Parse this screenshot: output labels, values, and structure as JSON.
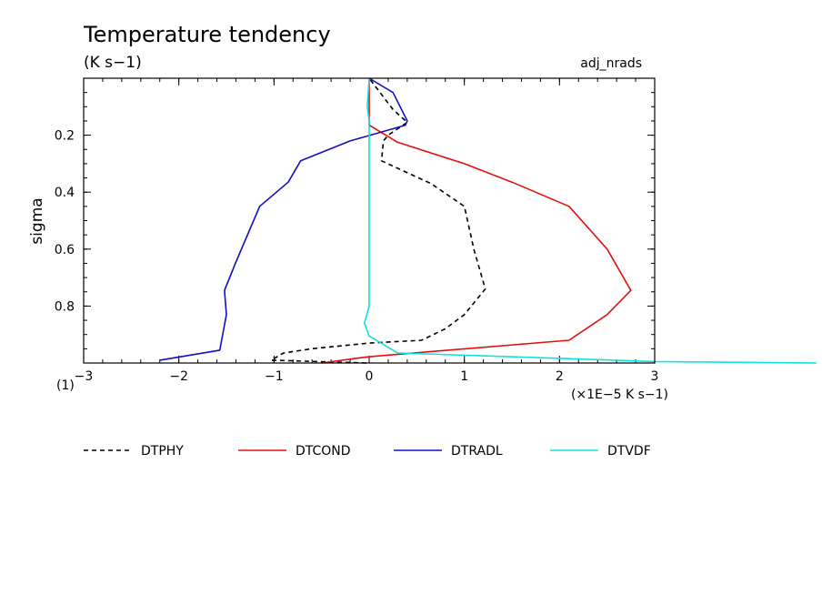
{
  "chart_data": {
    "type": "line",
    "title": "Temperature tendency",
    "subtitle": "(K s−1)",
    "tag": "adj_nrads",
    "xlabel": "(×1E−5 K s−1)",
    "ylabel": "sigma",
    "corner_label": "(1)",
    "xlim": [
      -3,
      3
    ],
    "ylim": [
      1.0,
      0.0
    ],
    "x_ticks": [
      -3,
      -2,
      -1,
      0,
      1,
      2,
      3
    ],
    "x_tick_labels": [
      "−3",
      "−2",
      "−1",
      "0",
      "1",
      "2",
      "3"
    ],
    "y_ticks": [
      0.2,
      0.4,
      0.6,
      0.8
    ],
    "y_tick_labels": [
      "0.2",
      "0.4",
      "0.6",
      "0.8"
    ],
    "grid": false,
    "series": [
      {
        "name": "DTPHY",
        "color": "#000000",
        "dash": "dashed",
        "points": [
          [
            -0.03,
            1.0
          ],
          [
            -1.03,
            0.99
          ],
          [
            -0.9,
            0.965
          ],
          [
            -0.6,
            0.95
          ],
          [
            0.0,
            0.93
          ],
          [
            0.55,
            0.92
          ],
          [
            0.8,
            0.88
          ],
          [
            1.0,
            0.83
          ],
          [
            1.22,
            0.74
          ],
          [
            1.1,
            0.6
          ],
          [
            1.0,
            0.45
          ],
          [
            0.65,
            0.37
          ],
          [
            0.13,
            0.29
          ],
          [
            0.15,
            0.22
          ],
          [
            0.2,
            0.2
          ],
          [
            0.4,
            0.155
          ],
          [
            0.25,
            0.11
          ],
          [
            0.0,
            0.0
          ]
        ]
      },
      {
        "name": "DTCOND",
        "color": "#e01010",
        "dash": "solid",
        "points": [
          [
            -0.5,
            1.0
          ],
          [
            -0.05,
            0.98
          ],
          [
            0.1,
            0.975
          ],
          [
            2.1,
            0.92
          ],
          [
            2.5,
            0.83
          ],
          [
            2.75,
            0.745
          ],
          [
            2.5,
            0.6
          ],
          [
            2.1,
            0.45
          ],
          [
            1.5,
            0.365
          ],
          [
            1.0,
            0.3
          ],
          [
            0.3,
            0.225
          ],
          [
            0.0,
            0.165
          ],
          [
            0.0,
            0.0
          ]
        ]
      },
      {
        "name": "DTRADL",
        "color": "#1010c0",
        "dash": "solid",
        "points": [
          [
            -2.2,
            0.99
          ],
          [
            -1.57,
            0.955
          ],
          [
            -1.5,
            0.83
          ],
          [
            -1.52,
            0.745
          ],
          [
            -1.4,
            0.645
          ],
          [
            -1.15,
            0.45
          ],
          [
            -0.85,
            0.365
          ],
          [
            -0.72,
            0.29
          ],
          [
            -0.2,
            0.22
          ],
          [
            0.38,
            0.165
          ],
          [
            0.4,
            0.15
          ],
          [
            0.25,
            0.05
          ],
          [
            0.0,
            0.0
          ]
        ]
      },
      {
        "name": "DTVDF",
        "color": "#10e0e0",
        "dash": "solid",
        "points": [
          [
            4.7,
            1.0
          ],
          [
            3.0,
            0.995
          ],
          [
            0.3,
            0.965
          ],
          [
            0.0,
            0.905
          ],
          [
            -0.05,
            0.86
          ],
          [
            0.0,
            0.8
          ],
          [
            0.0,
            0.3
          ],
          [
            0.0,
            0.15
          ],
          [
            -0.02,
            0.1
          ],
          [
            0.0,
            0.0
          ]
        ]
      }
    ]
  }
}
